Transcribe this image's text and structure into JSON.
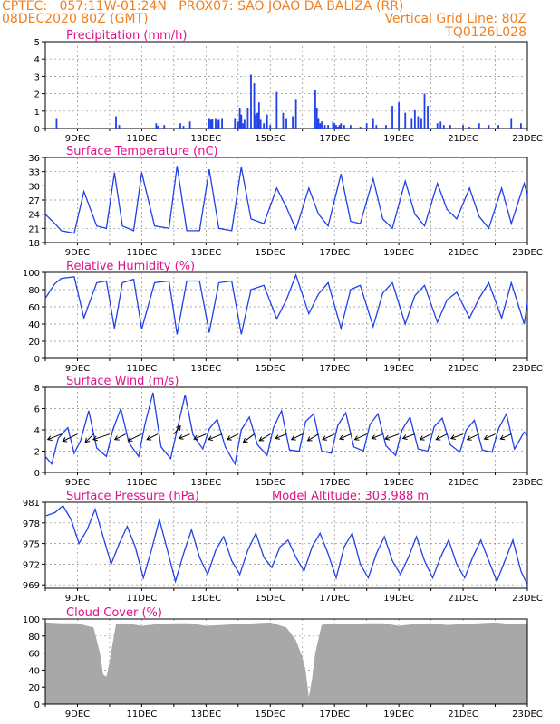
{
  "header": {
    "line1": "CPTEC:   057:11W-01:24N   PROX07: SAO JOAO DA BALIZA (RR)",
    "line2": "08DEC2020 80Z (GMT)",
    "right1": "Vertical Grid Line: 80Z",
    "right2": "TQ0126L028"
  },
  "colors": {
    "header": "#f08020",
    "title": "#e0108a",
    "series": "#2040e8",
    "cloud": "#a8a8a8",
    "grid": "#8c8c8c"
  },
  "x_labels": [
    "9DEC",
    "11DEC",
    "13DEC",
    "15DEC",
    "17DEC",
    "19DEC",
    "21DEC",
    "23DEC"
  ],
  "chart_data": [
    {
      "id": "precip",
      "type": "bar",
      "title": "Precipitation (mm/h)",
      "ylim": [
        0,
        5
      ],
      "yticks": [
        "0",
        "1",
        "2",
        "3",
        "4",
        "5"
      ],
      "x": [
        0.35,
        2.2,
        2.3,
        3.45,
        3.5,
        3.7,
        4.2,
        4.3,
        4.5,
        5.1,
        5.15,
        5.2,
        5.3,
        5.35,
        5.4,
        5.5,
        5.9,
        6.0,
        6.05,
        6.1,
        6.15,
        6.2,
        6.3,
        6.4,
        6.5,
        6.55,
        6.6,
        6.65,
        6.7,
        6.8,
        6.9,
        7.0,
        7.2,
        7.4,
        7.5,
        7.7,
        7.8,
        8.4,
        8.45,
        8.5,
        8.55,
        8.6,
        8.7,
        8.8,
        8.95,
        9.0,
        9.05,
        9.1,
        9.15,
        9.2,
        9.3,
        9.5,
        9.8,
        10.0,
        10.2,
        10.3,
        10.6,
        10.8,
        11.0,
        11.2,
        11.4,
        11.5,
        11.6,
        11.7,
        11.8,
        11.9,
        12.2,
        12.3,
        12.4,
        12.6,
        13.0,
        13.2,
        13.5,
        13.8,
        14.1,
        14.5,
        14.8
      ],
      "values": [
        0.6,
        0.7,
        0.2,
        0.3,
        0.15,
        0.2,
        0.3,
        0.15,
        0.4,
        0.6,
        0.5,
        0.55,
        0.6,
        0.45,
        0.5,
        0.6,
        0.6,
        0.4,
        1.2,
        0.8,
        0.3,
        0.5,
        1.2,
        3.1,
        2.6,
        0.8,
        0.9,
        1.5,
        0.5,
        0.3,
        0.8,
        0.2,
        2.1,
        0.9,
        0.6,
        0.7,
        1.7,
        2.2,
        1.2,
        0.6,
        0.3,
        0.4,
        0.2,
        0.2,
        0.4,
        0.3,
        0.2,
        0.1,
        0.2,
        0.3,
        0.2,
        0.2,
        0.1,
        0.3,
        0.6,
        0.2,
        0.2,
        1.3,
        1.5,
        0.9,
        0.6,
        1.1,
        0.7,
        0.6,
        2.0,
        1.3,
        0.3,
        0.4,
        0.2,
        0.2,
        0.2,
        0.1,
        0.3,
        0.2,
        0.2,
        0.6,
        0.3
      ]
    },
    {
      "id": "temp",
      "type": "line",
      "title": "Surface Temperature (nC)",
      "ylim": [
        18,
        36
      ],
      "yticks": [
        "18",
        "21",
        "24",
        "27",
        "30",
        "33",
        "36"
      ],
      "x": [
        0.0,
        0.3,
        0.5,
        0.9,
        1.2,
        1.6,
        1.9,
        2.15,
        2.4,
        2.75,
        3.0,
        3.4,
        3.85,
        4.1,
        4.4,
        4.8,
        5.1,
        5.4,
        5.8,
        6.1,
        6.4,
        6.8,
        7.2,
        7.5,
        7.8,
        8.2,
        8.5,
        8.8,
        9.2,
        9.5,
        9.8,
        10.2,
        10.5,
        10.8,
        11.2,
        11.5,
        11.8,
        12.2,
        12.5,
        12.8,
        13.2,
        13.5,
        13.8,
        14.2,
        14.5,
        14.9,
        15.0
      ],
      "values": [
        24.0,
        22.0,
        20.5,
        20.0,
        28.8,
        21.5,
        21.0,
        32.8,
        21.5,
        20.5,
        32.8,
        21.5,
        21.0,
        34.2,
        20.5,
        20.5,
        33.5,
        21.0,
        20.5,
        34.0,
        23.0,
        22.0,
        29.5,
        25.5,
        20.8,
        29.5,
        24.0,
        21.5,
        32.5,
        22.5,
        22.0,
        31.5,
        23.0,
        21.0,
        31.0,
        24.0,
        21.5,
        30.5,
        25.0,
        23.0,
        29.5,
        23.5,
        21.0,
        29.5,
        22.0,
        30.5,
        28.0
      ]
    },
    {
      "id": "rh",
      "type": "line",
      "title": "Relative Humidity (%)",
      "ylim": [
        0,
        100
      ],
      "yticks": [
        "0",
        "20",
        "40",
        "60",
        "80",
        "100"
      ],
      "x": [
        0.0,
        0.3,
        0.5,
        0.9,
        1.2,
        1.6,
        1.9,
        2.15,
        2.4,
        2.75,
        3.0,
        3.4,
        3.85,
        4.1,
        4.4,
        4.8,
        5.1,
        5.4,
        5.8,
        6.1,
        6.4,
        6.8,
        7.2,
        7.5,
        7.8,
        8.2,
        8.5,
        8.8,
        9.2,
        9.5,
        9.8,
        10.2,
        10.5,
        10.8,
        11.2,
        11.5,
        11.8,
        12.2,
        12.5,
        12.8,
        13.2,
        13.5,
        13.8,
        14.2,
        14.5,
        14.9,
        15.0
      ],
      "values": [
        70.0,
        87.0,
        93.0,
        95.0,
        47.0,
        88.0,
        90.0,
        35.0,
        88.0,
        92.0,
        34.0,
        88.0,
        90.0,
        28.0,
        90.0,
        90.0,
        30.0,
        88.0,
        90.0,
        28.0,
        80.0,
        85.0,
        46.0,
        68.0,
        97.0,
        52.0,
        75.0,
        88.0,
        35.0,
        80.0,
        85.0,
        37.0,
        76.0,
        88.0,
        40.0,
        73.0,
        85.0,
        42.0,
        68.0,
        77.0,
        47.0,
        70.0,
        88.0,
        47.0,
        88.0,
        40.0,
        65.0
      ]
    },
    {
      "id": "wind",
      "type": "line",
      "title": "Surface Wind (m/s)",
      "ylim": [
        0,
        8
      ],
      "yticks": [
        "0",
        "2",
        "4",
        "6",
        "8"
      ],
      "x": [
        0.0,
        0.2,
        0.4,
        0.7,
        0.9,
        1.1,
        1.35,
        1.6,
        1.9,
        2.1,
        2.35,
        2.6,
        2.9,
        3.1,
        3.35,
        3.6,
        3.9,
        4.1,
        4.35,
        4.6,
        4.9,
        5.1,
        5.35,
        5.6,
        5.9,
        6.1,
        6.35,
        6.6,
        6.9,
        7.1,
        7.35,
        7.6,
        7.9,
        8.1,
        8.35,
        8.6,
        8.9,
        9.1,
        9.35,
        9.6,
        9.9,
        10.1,
        10.35,
        10.6,
        10.9,
        11.1,
        11.35,
        11.6,
        11.9,
        12.1,
        12.35,
        12.6,
        12.9,
        13.1,
        13.35,
        13.6,
        13.9,
        14.1,
        14.35,
        14.6,
        14.9,
        15.0
      ],
      "values": [
        1.5,
        0.8,
        3.2,
        4.2,
        1.8,
        3.0,
        5.8,
        2.3,
        1.5,
        4.0,
        6.0,
        2.8,
        1.5,
        4.5,
        7.5,
        2.4,
        1.3,
        4.0,
        7.3,
        3.5,
        2.2,
        4.1,
        5.0,
        2.4,
        0.8,
        4.0,
        5.2,
        2.6,
        1.6,
        4.2,
        5.8,
        2.1,
        2.0,
        4.8,
        5.5,
        2.0,
        1.8,
        4.4,
        5.6,
        2.4,
        2.0,
        4.5,
        5.5,
        2.5,
        1.6,
        4.0,
        5.2,
        2.2,
        2.0,
        4.3,
        5.1,
        2.6,
        1.9,
        4.0,
        4.9,
        2.1,
        1.9,
        4.1,
        5.5,
        2.2,
        3.8,
        3.4
      ],
      "arrows": {
        "x": [
          0.5,
          1.0,
          1.5,
          2.0,
          2.5,
          3.0,
          3.5,
          4.0,
          4.5,
          5.0,
          5.5,
          6.0,
          6.5,
          7.0,
          7.5,
          8.0,
          8.5,
          9.0,
          9.5,
          10.0,
          10.5,
          11.0,
          11.5,
          12.0,
          12.5,
          13.0,
          13.5,
          14.0,
          14.5
        ],
        "u": [
          -2.5,
          -2.7,
          -1.5,
          -3.0,
          -2.0,
          -2.5,
          -2.0,
          1.2,
          -2.0,
          -2.2,
          -2.5,
          -2.0,
          -2.0,
          -2.0,
          -2.0,
          -2.0,
          -2.0,
          -2.2,
          -2.0,
          -2.2,
          -2.0,
          -2.5,
          -2.2,
          -2.0,
          -2.0,
          -2.2,
          -2.2,
          -2.0,
          -2.0
        ],
        "v": [
          -1.0,
          -1.3,
          -1.5,
          -1.0,
          -1.0,
          -1.2,
          -1.0,
          1.5,
          -0.8,
          -0.9,
          -1.0,
          -1.0,
          -1.5,
          -1.2,
          -0.8,
          -1.0,
          -1.2,
          -1.0,
          -0.9,
          -1.0,
          -0.8,
          -0.9,
          -0.8,
          -1.0,
          -1.0,
          -0.8,
          -1.0,
          -0.9,
          -0.9
        ]
      }
    },
    {
      "id": "press",
      "type": "line",
      "title": "Surface Pressure (hPa)",
      "subtitle": "Model Altitude: 303.988 m",
      "ylim": [
        968.5,
        981
      ],
      "yticks": [
        "969",
        "972",
        "975",
        "978",
        "981"
      ],
      "x": [
        0.0,
        0.3,
        0.55,
        0.8,
        1.05,
        1.3,
        1.55,
        1.8,
        2.05,
        2.3,
        2.55,
        2.8,
        3.05,
        3.3,
        3.55,
        3.8,
        4.05,
        4.3,
        4.55,
        4.8,
        5.05,
        5.3,
        5.55,
        5.8,
        6.05,
        6.3,
        6.55,
        6.8,
        7.05,
        7.3,
        7.55,
        7.8,
        8.05,
        8.3,
        8.55,
        8.8,
        9.05,
        9.3,
        9.55,
        9.8,
        10.05,
        10.3,
        10.55,
        10.8,
        11.05,
        11.3,
        11.55,
        11.8,
        12.05,
        12.3,
        12.55,
        12.8,
        13.05,
        13.3,
        13.55,
        13.8,
        14.05,
        14.3,
        14.55,
        14.8,
        15.0
      ],
      "values": [
        979.0,
        979.5,
        980.5,
        978.5,
        975.0,
        977.0,
        980.0,
        976.0,
        972.0,
        975.0,
        977.5,
        974.5,
        970.0,
        974.0,
        978.5,
        974.0,
        969.5,
        973.5,
        977.0,
        973.0,
        970.5,
        974.0,
        976.0,
        972.5,
        970.5,
        974.0,
        976.5,
        973.0,
        971.5,
        974.5,
        975.5,
        973.0,
        971.0,
        974.5,
        976.5,
        973.5,
        970.0,
        974.5,
        976.5,
        972.0,
        970.0,
        973.5,
        976.0,
        972.5,
        970.5,
        973.0,
        976.0,
        972.5,
        970.0,
        973.0,
        975.5,
        972.0,
        970.0,
        973.0,
        975.5,
        972.5,
        969.5,
        972.5,
        975.5,
        971.0,
        969.0
      ]
    },
    {
      "id": "cloud",
      "type": "area",
      "title": "Cloud Cover (%)",
      "ylim": [
        0,
        100
      ],
      "yticks": [
        "0",
        "20",
        "40",
        "60",
        "80",
        "100"
      ],
      "x": [
        0.0,
        0.5,
        1.0,
        1.5,
        1.7,
        1.8,
        1.9,
        2.0,
        2.2,
        2.5,
        3.0,
        3.5,
        4.0,
        4.5,
        5.0,
        5.5,
        6.0,
        6.5,
        7.0,
        7.5,
        7.8,
        8.0,
        8.1,
        8.2,
        8.3,
        8.4,
        8.6,
        9.0,
        9.5,
        10.0,
        10.5,
        11.0,
        11.5,
        12.0,
        12.5,
        13.0,
        13.5,
        14.0,
        14.5,
        15.0
      ],
      "values": [
        96.0,
        95.0,
        95.0,
        90.0,
        60.0,
        35.0,
        32.0,
        50.0,
        94.0,
        95.0,
        92.0,
        94.0,
        95.0,
        95.0,
        92.0,
        93.0,
        94.0,
        95.0,
        96.0,
        90.0,
        75.0,
        55.0,
        40.0,
        8.0,
        30.0,
        60.0,
        93.0,
        95.0,
        94.0,
        95.0,
        95.0,
        92.0,
        94.0,
        95.0,
        93.0,
        94.0,
        95.0,
        96.0,
        94.0,
        95.0
      ]
    }
  ]
}
